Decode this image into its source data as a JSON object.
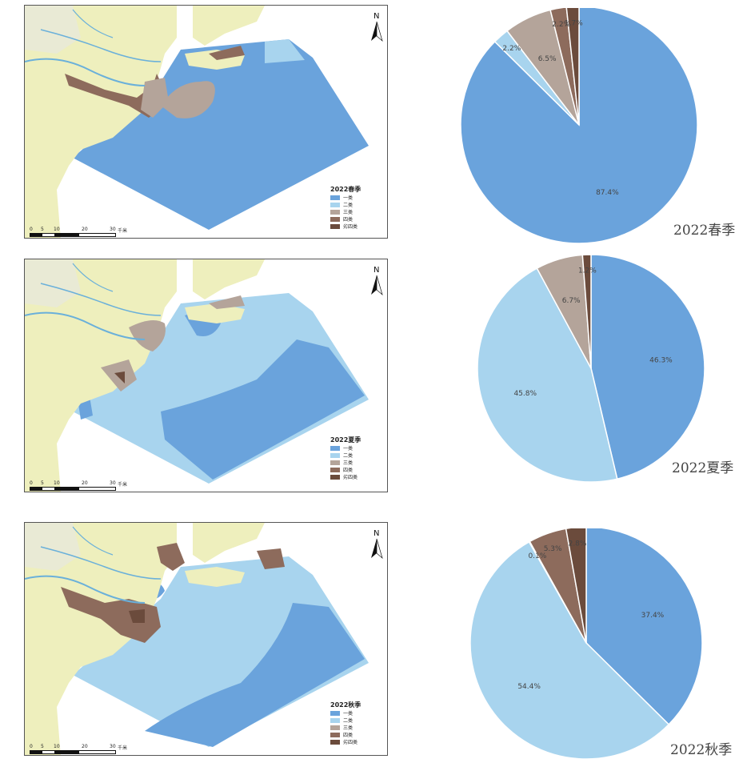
{
  "colors": {
    "class1": "#6aa3dc",
    "class2": "#a8d4ee",
    "class3": "#b4a49a",
    "class4": "#8d6b5c",
    "class5": "#6b4b3c",
    "land": "#eeefbd",
    "land_light": "#e9ead5",
    "river": "#6ab0da"
  },
  "map_common": {
    "north": "N",
    "scale_labels": [
      "0",
      "5",
      "10",
      "20",
      "30"
    ],
    "scale_unit": "千米",
    "legend_items": [
      "一类",
      "二类",
      "三类",
      "四类",
      "劣四类"
    ]
  },
  "maps": [
    {
      "legend_title": "2022春季"
    },
    {
      "legend_title": "2022夏季"
    },
    {
      "legend_title": "2022秋季"
    }
  ],
  "chart_data": [
    {
      "type": "pie",
      "title": "2022春季",
      "labels": [
        "一类",
        "二类",
        "三类",
        "四类",
        "劣四类"
      ],
      "values": [
        87.4,
        2.2,
        6.5,
        2.2,
        1.7
      ],
      "value_labels": [
        "87.4%",
        "2.2%",
        "6.5%",
        "2.2%",
        "1.7%"
      ]
    },
    {
      "type": "pie",
      "title": "2022夏季",
      "labels": [
        "一类",
        "二类",
        "三类",
        "四类",
        "劣四类"
      ],
      "values": [
        46.3,
        45.8,
        6.7,
        0,
        1.2
      ],
      "value_labels": [
        "46.3%",
        "45.8%",
        "6.7%",
        "",
        "1.2%"
      ]
    },
    {
      "type": "pie",
      "title": "2022秋季",
      "labels": [
        "一类",
        "二类",
        "三类",
        "四类",
        "劣四类"
      ],
      "values": [
        37.4,
        54.4,
        0.1,
        5.3,
        2.8
      ],
      "value_labels": [
        "37.4%",
        "54.4%",
        "0.1%",
        "5.3%",
        "2.8%"
      ]
    }
  ]
}
